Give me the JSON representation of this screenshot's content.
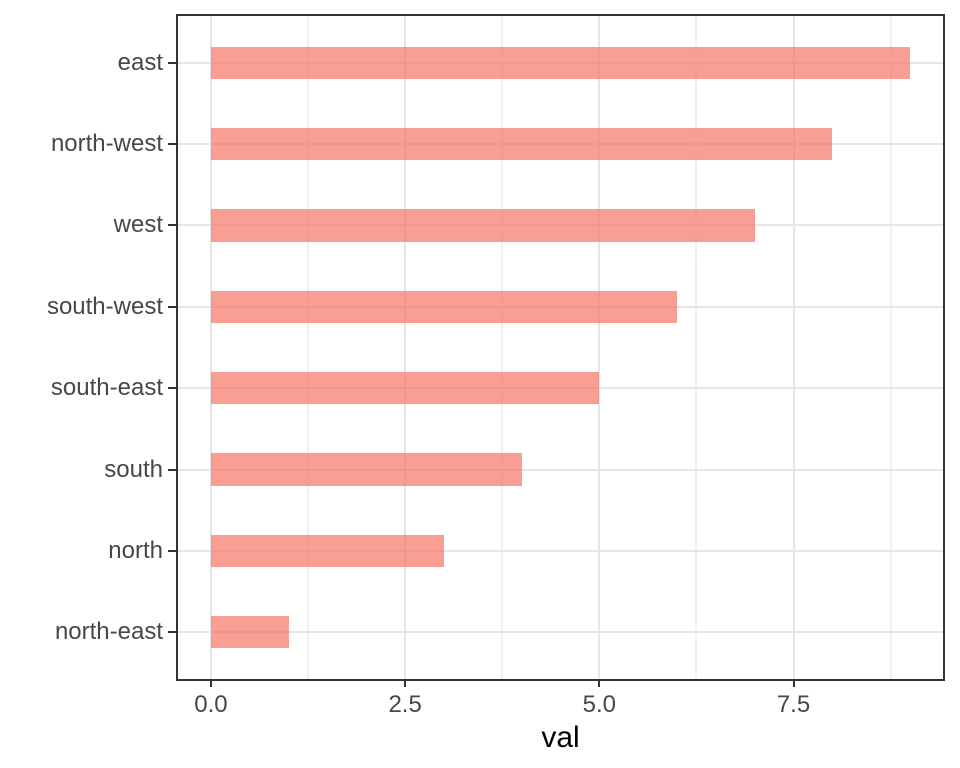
{
  "chart_data": {
    "type": "bar",
    "orientation": "horizontal",
    "title": "",
    "xlabel": "val",
    "ylabel": "",
    "categories": [
      "east",
      "north-west",
      "west",
      "south-west",
      "south-east",
      "south",
      "north",
      "north-east"
    ],
    "values": [
      9,
      8,
      7,
      6,
      5,
      4,
      3,
      1
    ],
    "xlim": [
      -0.45,
      9.45
    ],
    "x_major_ticks": [
      0,
      2.5,
      5,
      7.5
    ],
    "x_tick_labels": [
      "0.0",
      "2.5",
      "5.0",
      "7.5"
    ],
    "x_minor_ticks": [
      1.25,
      3.75,
      6.25,
      8.75
    ],
    "bar_relative_width": 0.4,
    "band_expansion": 0.6,
    "grid": true,
    "legend": "none",
    "colors": {
      "bar_fill": "rgba(246,122,106,0.73)",
      "grid_major": "#E6E6E6",
      "grid_minor": "#F0F0F0",
      "panel_border": "#333333",
      "tick_mark": "#333333",
      "tick_label": "#474747",
      "axis_title": "#000000",
      "background": "#FFFFFF"
    }
  }
}
